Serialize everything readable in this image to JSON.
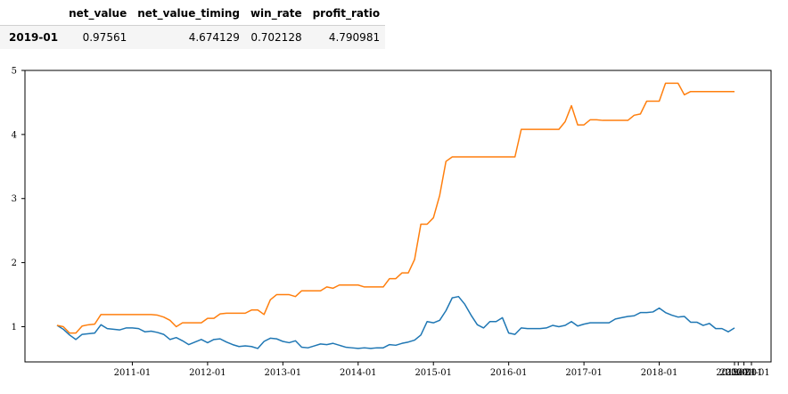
{
  "table": {
    "columns": [
      "",
      "net_value",
      "net_value_timing",
      "win_rate",
      "profit_ratio"
    ],
    "rows": [
      {
        "index": "2019-01",
        "net_value": "0.97561",
        "net_value_timing": "4.674129",
        "win_rate": "0.702128",
        "profit_ratio": "4.790981"
      }
    ]
  },
  "chart_data": {
    "type": "line",
    "title": "",
    "xlabel": "",
    "ylabel": "",
    "ylim": [
      0.45,
      5.0
    ],
    "y_ticks": [
      1,
      2,
      3,
      4,
      5
    ],
    "x_range_months": [
      0,
      124
    ],
    "x_ticks": [
      {
        "label": "2011-01",
        "m": 12
      },
      {
        "label": "2012-01",
        "m": 24
      },
      {
        "label": "2013-01",
        "m": 36
      },
      {
        "label": "2014-01",
        "m": 48
      },
      {
        "label": "2015-01",
        "m": 60
      },
      {
        "label": "2016-01",
        "m": 72
      },
      {
        "label": "2017-01",
        "m": 84
      },
      {
        "label": "2018-01",
        "m": 96
      },
      {
        "label": "2019-01",
        "m": 108
      },
      {
        "label": "2020-01",
        "m": 108.6
      },
      {
        "label": "2020-01",
        "m": 109.5
      },
      {
        "label": "2021-01",
        "m": 110.7
      }
    ],
    "grid": false,
    "legend": "none",
    "series": [
      {
        "key": "net_value",
        "color": "#1f77b4",
        "points": [
          [
            0,
            1.02
          ],
          [
            1,
            0.96
          ],
          [
            2,
            0.87
          ],
          [
            3,
            0.8
          ],
          [
            4,
            0.88
          ],
          [
            5,
            0.89
          ],
          [
            6,
            0.9
          ],
          [
            7,
            1.03
          ],
          [
            8,
            0.97
          ],
          [
            9,
            0.96
          ],
          [
            10,
            0.95
          ],
          [
            11,
            0.98
          ],
          [
            12,
            0.98
          ],
          [
            13,
            0.97
          ],
          [
            14,
            0.92
          ],
          [
            15,
            0.93
          ],
          [
            16,
            0.91
          ],
          [
            17,
            0.88
          ],
          [
            18,
            0.8
          ],
          [
            19,
            0.83
          ],
          [
            20,
            0.78
          ],
          [
            21,
            0.72
          ],
          [
            22,
            0.76
          ],
          [
            23,
            0.8
          ],
          [
            24,
            0.75
          ],
          [
            25,
            0.8
          ],
          [
            26,
            0.81
          ],
          [
            27,
            0.76
          ],
          [
            28,
            0.72
          ],
          [
            29,
            0.69
          ],
          [
            30,
            0.7
          ],
          [
            31,
            0.69
          ],
          [
            32,
            0.66
          ],
          [
            33,
            0.77
          ],
          [
            34,
            0.82
          ],
          [
            35,
            0.81
          ],
          [
            36,
            0.77
          ],
          [
            37,
            0.75
          ],
          [
            38,
            0.78
          ],
          [
            39,
            0.68
          ],
          [
            40,
            0.67
          ],
          [
            41,
            0.7
          ],
          [
            42,
            0.73
          ],
          [
            43,
            0.72
          ],
          [
            44,
            0.74
          ],
          [
            45,
            0.71
          ],
          [
            46,
            0.68
          ],
          [
            47,
            0.67
          ],
          [
            48,
            0.66
          ],
          [
            49,
            0.67
          ],
          [
            50,
            0.66
          ],
          [
            51,
            0.67
          ],
          [
            52,
            0.67
          ],
          [
            53,
            0.72
          ],
          [
            54,
            0.71
          ],
          [
            55,
            0.74
          ],
          [
            56,
            0.76
          ],
          [
            57,
            0.79
          ],
          [
            58,
            0.87
          ],
          [
            59,
            1.08
          ],
          [
            60,
            1.06
          ],
          [
            61,
            1.1
          ],
          [
            62,
            1.25
          ],
          [
            63,
            1.45
          ],
          [
            64,
            1.47
          ],
          [
            65,
            1.35
          ],
          [
            66,
            1.18
          ],
          [
            67,
            1.03
          ],
          [
            68,
            0.98
          ],
          [
            69,
            1.08
          ],
          [
            70,
            1.08
          ],
          [
            71,
            1.14
          ],
          [
            72,
            0.9
          ],
          [
            73,
            0.88
          ],
          [
            74,
            0.98
          ],
          [
            75,
            0.97
          ],
          [
            76,
            0.97
          ],
          [
            77,
            0.97
          ],
          [
            78,
            0.98
          ],
          [
            79,
            1.02
          ],
          [
            80,
            1.0
          ],
          [
            81,
            1.02
          ],
          [
            82,
            1.08
          ],
          [
            83,
            1.01
          ],
          [
            84,
            1.04
          ],
          [
            85,
            1.06
          ],
          [
            86,
            1.06
          ],
          [
            87,
            1.06
          ],
          [
            88,
            1.06
          ],
          [
            89,
            1.12
          ],
          [
            90,
            1.14
          ],
          [
            91,
            1.16
          ],
          [
            92,
            1.17
          ],
          [
            93,
            1.22
          ],
          [
            94,
            1.22
          ],
          [
            95,
            1.23
          ],
          [
            96,
            1.29
          ],
          [
            97,
            1.22
          ],
          [
            98,
            1.18
          ],
          [
            99,
            1.15
          ],
          [
            100,
            1.16
          ],
          [
            101,
            1.07
          ],
          [
            102,
            1.07
          ],
          [
            103,
            1.02
          ],
          [
            104,
            1.05
          ],
          [
            105,
            0.97
          ],
          [
            106,
            0.97
          ],
          [
            107,
            0.92
          ],
          [
            108,
            0.98
          ]
        ]
      },
      {
        "key": "net_value_timing",
        "color": "#ff7f0e",
        "points": [
          [
            0,
            1.02
          ],
          [
            1,
            1.0
          ],
          [
            2,
            0.9
          ],
          [
            3,
            0.9
          ],
          [
            4,
            1.01
          ],
          [
            5,
            1.03
          ],
          [
            6,
            1.04
          ],
          [
            7,
            1.19
          ],
          [
            8,
            1.19
          ],
          [
            9,
            1.19
          ],
          [
            10,
            1.19
          ],
          [
            11,
            1.19
          ],
          [
            12,
            1.19
          ],
          [
            13,
            1.19
          ],
          [
            14,
            1.19
          ],
          [
            15,
            1.19
          ],
          [
            16,
            1.18
          ],
          [
            17,
            1.15
          ],
          [
            18,
            1.1
          ],
          [
            19,
            1.0
          ],
          [
            20,
            1.06
          ],
          [
            21,
            1.06
          ],
          [
            22,
            1.06
          ],
          [
            23,
            1.06
          ],
          [
            24,
            1.13
          ],
          [
            25,
            1.13
          ],
          [
            26,
            1.2
          ],
          [
            27,
            1.21
          ],
          [
            28,
            1.21
          ],
          [
            29,
            1.21
          ],
          [
            30,
            1.21
          ],
          [
            31,
            1.26
          ],
          [
            32,
            1.26
          ],
          [
            33,
            1.19
          ],
          [
            34,
            1.42
          ],
          [
            35,
            1.5
          ],
          [
            36,
            1.5
          ],
          [
            37,
            1.5
          ],
          [
            38,
            1.47
          ],
          [
            39,
            1.56
          ],
          [
            40,
            1.56
          ],
          [
            41,
            1.56
          ],
          [
            42,
            1.56
          ],
          [
            43,
            1.62
          ],
          [
            44,
            1.6
          ],
          [
            45,
            1.65
          ],
          [
            46,
            1.65
          ],
          [
            47,
            1.65
          ],
          [
            48,
            1.65
          ],
          [
            49,
            1.62
          ],
          [
            50,
            1.62
          ],
          [
            51,
            1.62
          ],
          [
            52,
            1.62
          ],
          [
            53,
            1.75
          ],
          [
            54,
            1.75
          ],
          [
            55,
            1.84
          ],
          [
            56,
            1.84
          ],
          [
            57,
            2.05
          ],
          [
            58,
            2.6
          ],
          [
            59,
            2.6
          ],
          [
            60,
            2.7
          ],
          [
            61,
            3.05
          ],
          [
            62,
            3.58
          ],
          [
            63,
            3.65
          ],
          [
            64,
            3.65
          ],
          [
            65,
            3.65
          ],
          [
            66,
            3.65
          ],
          [
            67,
            3.65
          ],
          [
            68,
            3.65
          ],
          [
            69,
            3.65
          ],
          [
            70,
            3.65
          ],
          [
            71,
            3.65
          ],
          [
            72,
            3.65
          ],
          [
            73,
            3.65
          ],
          [
            74,
            4.08
          ],
          [
            75,
            4.08
          ],
          [
            76,
            4.08
          ],
          [
            77,
            4.08
          ],
          [
            78,
            4.08
          ],
          [
            79,
            4.08
          ],
          [
            80,
            4.08
          ],
          [
            81,
            4.2
          ],
          [
            82,
            4.45
          ],
          [
            83,
            4.15
          ],
          [
            84,
            4.15
          ],
          [
            85,
            4.23
          ],
          [
            86,
            4.23
          ],
          [
            87,
            4.22
          ],
          [
            88,
            4.22
          ],
          [
            89,
            4.22
          ],
          [
            90,
            4.22
          ],
          [
            91,
            4.22
          ],
          [
            92,
            4.3
          ],
          [
            93,
            4.32
          ],
          [
            94,
            4.52
          ],
          [
            95,
            4.52
          ],
          [
            96,
            4.52
          ],
          [
            97,
            4.8
          ],
          [
            98,
            4.8
          ],
          [
            99,
            4.8
          ],
          [
            100,
            4.62
          ],
          [
            101,
            4.67
          ],
          [
            102,
            4.67
          ],
          [
            103,
            4.67
          ],
          [
            104,
            4.67
          ],
          [
            105,
            4.67
          ],
          [
            106,
            4.67
          ],
          [
            107,
            4.67
          ],
          [
            108,
            4.67
          ]
        ]
      }
    ]
  }
}
